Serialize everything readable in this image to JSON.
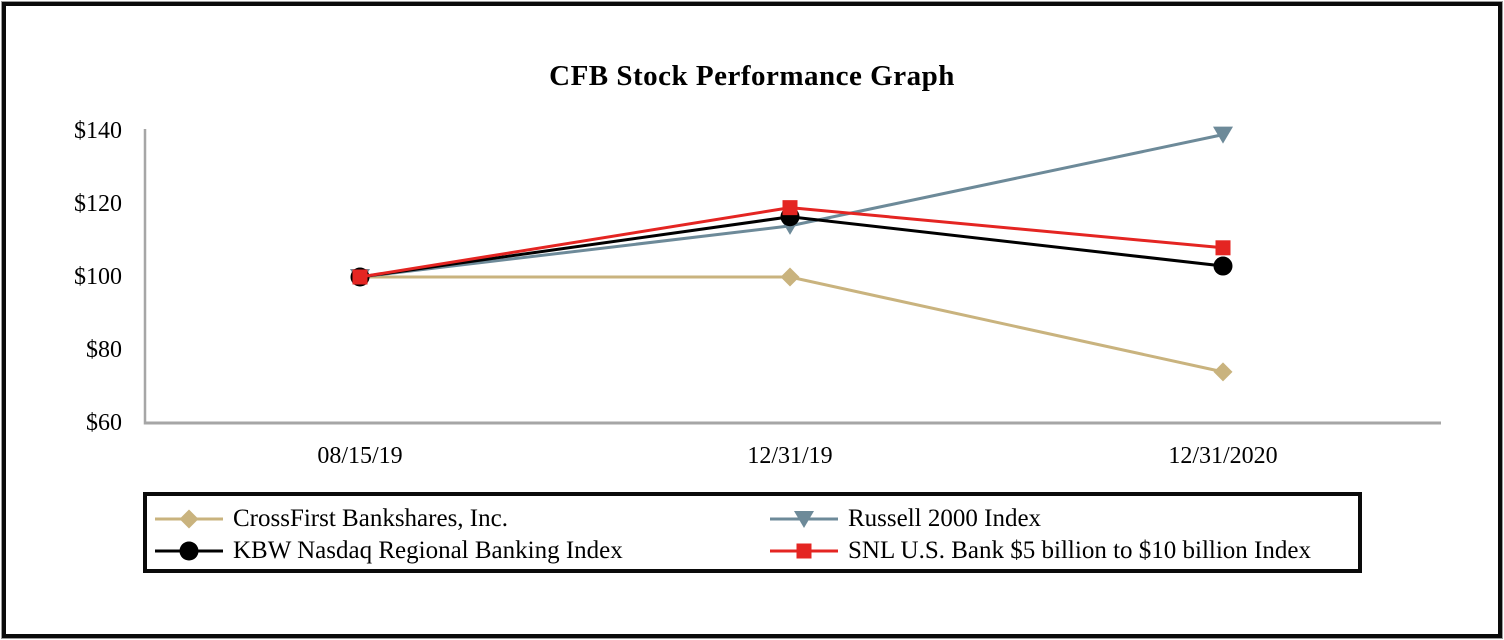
{
  "title": "CFB Stock Performance Graph",
  "chart_data": {
    "type": "line",
    "title": "CFB Stock Performance Graph",
    "categories": [
      "08/15/19",
      "12/31/19",
      "12/31/2020"
    ],
    "series": [
      {
        "name": "CrossFirst Bankshares, Inc.",
        "values": [
          100,
          100,
          74
        ],
        "color": "#c9b37e",
        "marker": "diamond"
      },
      {
        "name": "Russell 2000 Index",
        "values": [
          100,
          114,
          139
        ],
        "color": "#6d8a99",
        "marker": "triangle-down"
      },
      {
        "name": "KBW Nasdaq Regional Banking Index",
        "values": [
          100,
          116.5,
          103
        ],
        "color": "#000000",
        "marker": "circle"
      },
      {
        "name": "SNL U.S. Bank $5 billion to $10 billion Index",
        "values": [
          100,
          119,
          108
        ],
        "color": "#e42522",
        "marker": "square"
      }
    ],
    "xlabel": "",
    "ylabel": "",
    "ylim": [
      60,
      140
    ],
    "yticks": [
      {
        "value": 60,
        "label": "$60"
      },
      {
        "value": 80,
        "label": "$80"
      },
      {
        "value": 100,
        "label": "$100"
      },
      {
        "value": 120,
        "label": "$120"
      },
      {
        "value": 140,
        "label": "$140"
      }
    ],
    "grid": false,
    "legend_position": "bottom-framed",
    "legend_order": [
      "CrossFirst Bankshares, Inc.",
      "Russell 2000 Index",
      "KBW Nasdaq Regional Banking Index",
      "SNL U.S. Bank $5 billion to $10 billion Index"
    ],
    "axis_color": "#a6a6a6"
  }
}
